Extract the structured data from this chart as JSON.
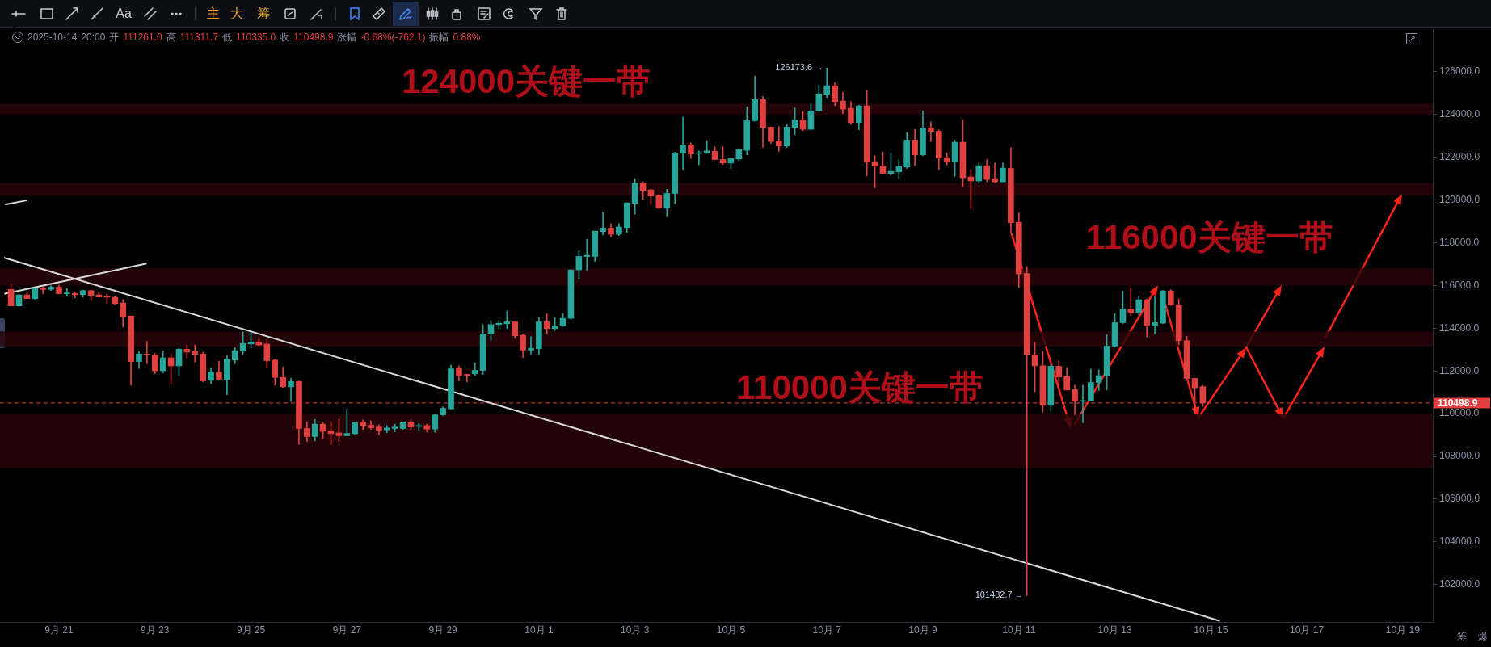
{
  "chart_data": {
    "type": "candlestick",
    "x": [
      "2025-09-20T00:00",
      "2025-09-20T04:00",
      "2025-09-20T08:00",
      "2025-09-20T12:00",
      "2025-09-20T16:00",
      "2025-09-20T20:00",
      "2025-09-21T00:00",
      "2025-09-21T04:00",
      "2025-09-21T08:00",
      "2025-09-21T12:00",
      "2025-09-21T16:00",
      "2025-09-21T20:00",
      "2025-09-22T00:00",
      "2025-09-22T04:00",
      "2025-09-22T08:00",
      "2025-09-22T12:00",
      "2025-09-22T16:00",
      "2025-09-22T20:00",
      "2025-09-23T00:00",
      "2025-09-23T04:00",
      "2025-09-23T08:00",
      "2025-09-23T12:00",
      "2025-09-23T16:00",
      "2025-09-23T20:00",
      "2025-09-24T00:00",
      "2025-09-24T04:00",
      "2025-09-24T08:00",
      "2025-09-24T12:00",
      "2025-09-24T16:00",
      "2025-09-24T20:00",
      "2025-09-25T00:00",
      "2025-09-25T04:00",
      "2025-09-25T08:00",
      "2025-09-25T12:00",
      "2025-09-25T16:00",
      "2025-09-25T20:00",
      "2025-09-26T00:00",
      "2025-09-26T04:00",
      "2025-09-26T08:00",
      "2025-09-26T12:00",
      "2025-09-26T16:00",
      "2025-09-26T20:00",
      "2025-09-27T00:00",
      "2025-09-27T04:00",
      "2025-09-27T08:00",
      "2025-09-27T12:00",
      "2025-09-27T16:00",
      "2025-09-27T20:00",
      "2025-09-28T00:00",
      "2025-09-28T04:00",
      "2025-09-28T08:00",
      "2025-09-28T12:00",
      "2025-09-28T16:00",
      "2025-09-28T20:00",
      "2025-09-29T00:00",
      "2025-09-29T04:00",
      "2025-09-29T08:00",
      "2025-09-29T12:00",
      "2025-09-29T16:00",
      "2025-09-29T20:00",
      "2025-09-30T00:00",
      "2025-09-30T04:00",
      "2025-09-30T08:00",
      "2025-09-30T12:00",
      "2025-09-30T16:00",
      "2025-09-30T20:00",
      "2025-10-01T00:00",
      "2025-10-01T04:00",
      "2025-10-01T08:00",
      "2025-10-01T12:00",
      "2025-10-01T16:00",
      "2025-10-01T20:00",
      "2025-10-02T00:00",
      "2025-10-02T04:00",
      "2025-10-02T08:00",
      "2025-10-02T12:00",
      "2025-10-02T16:00",
      "2025-10-02T20:00",
      "2025-10-03T00:00",
      "2025-10-03T04:00",
      "2025-10-03T08:00",
      "2025-10-03T12:00",
      "2025-10-03T16:00",
      "2025-10-03T20:00",
      "2025-10-04T00:00",
      "2025-10-04T04:00",
      "2025-10-04T08:00",
      "2025-10-04T12:00",
      "2025-10-04T16:00",
      "2025-10-04T20:00",
      "2025-10-05T00:00",
      "2025-10-05T04:00",
      "2025-10-05T08:00",
      "2025-10-05T12:00",
      "2025-10-05T16:00",
      "2025-10-05T20:00",
      "2025-10-06T00:00",
      "2025-10-06T04:00",
      "2025-10-06T08:00",
      "2025-10-06T12:00",
      "2025-10-06T16:00",
      "2025-10-06T20:00",
      "2025-10-07T00:00",
      "2025-10-07T04:00",
      "2025-10-07T08:00",
      "2025-10-07T12:00",
      "2025-10-07T16:00",
      "2025-10-07T20:00",
      "2025-10-08T00:00",
      "2025-10-08T04:00",
      "2025-10-08T08:00",
      "2025-10-08T12:00",
      "2025-10-08T16:00",
      "2025-10-08T20:00",
      "2025-10-09T00:00",
      "2025-10-09T04:00",
      "2025-10-09T08:00",
      "2025-10-09T12:00",
      "2025-10-09T16:00",
      "2025-10-09T20:00",
      "2025-10-10T00:00",
      "2025-10-10T04:00",
      "2025-10-10T08:00",
      "2025-10-10T12:00",
      "2025-10-10T16:00",
      "2025-10-10T20:00",
      "2025-10-11T00:00",
      "2025-10-11T04:00",
      "2025-10-11T08:00",
      "2025-10-11T12:00",
      "2025-10-11T16:00",
      "2025-10-11T20:00",
      "2025-10-12T00:00",
      "2025-10-12T04:00",
      "2025-10-12T08:00",
      "2025-10-12T12:00",
      "2025-10-12T16:00",
      "2025-10-12T20:00",
      "2025-10-13T00:00",
      "2025-10-13T04:00",
      "2025-10-13T08:00",
      "2025-10-13T12:00",
      "2025-10-13T16:00",
      "2025-10-13T20:00",
      "2025-10-14T00:00",
      "2025-10-14T04:00",
      "2025-10-14T08:00",
      "2025-10-14T12:00",
      "2025-10-14T16:00",
      "2025-10-14T20:00"
    ],
    "ohlc": [
      [
        115814,
        116057,
        115044,
        115044
      ],
      [
        115044,
        115584,
        115017,
        115557
      ],
      [
        115557,
        115652,
        115382,
        115382
      ],
      [
        115382,
        115881,
        115355,
        115854
      ],
      [
        115895,
        115922,
        115611,
        115814
      ],
      [
        115814,
        115989,
        115760,
        115922
      ],
      [
        115922,
        116016,
        115611,
        115611
      ],
      [
        115611,
        115854,
        115517,
        115652
      ],
      [
        115625,
        115692,
        115422,
        115571
      ],
      [
        115571,
        115787,
        115449,
        115760
      ],
      [
        115760,
        115787,
        115287,
        115530
      ],
      [
        115557,
        115692,
        115449,
        115463
      ],
      [
        115490,
        115611,
        115152,
        115449
      ],
      [
        115449,
        115503,
        115112,
        115152
      ],
      [
        115179,
        115341,
        114058,
        114544
      ],
      [
        114571,
        114571,
        111330,
        112438
      ],
      [
        112438,
        112924,
        112114,
        112789
      ],
      [
        112789,
        113383,
        112343,
        112748
      ],
      [
        112748,
        112816,
        111871,
        112006
      ],
      [
        112006,
        112938,
        111911,
        112613
      ],
      [
        112613,
        112775,
        111371,
        112235
      ],
      [
        112235,
        113046,
        111803,
        113019
      ],
      [
        113019,
        113208,
        112613,
        112883
      ],
      [
        112911,
        113221,
        112411,
        112775
      ],
      [
        112789,
        112883,
        111493,
        111533
      ],
      [
        111560,
        112141,
        111398,
        111938
      ],
      [
        111938,
        112451,
        111601,
        111601
      ],
      [
        111601,
        112708,
        110885,
        112546
      ],
      [
        112506,
        113086,
        112343,
        112951
      ],
      [
        112924,
        113829,
        112748,
        113289
      ],
      [
        113262,
        113802,
        113073,
        113356
      ],
      [
        113356,
        113559,
        113154,
        113208
      ],
      [
        113262,
        113464,
        112141,
        112478
      ],
      [
        112506,
        112546,
        111330,
        111695
      ],
      [
        111695,
        112181,
        111223,
        111263
      ],
      [
        111263,
        111668,
        110561,
        111506
      ],
      [
        111506,
        111533,
        108562,
        109305
      ],
      [
        109305,
        109615,
        108697,
        108927
      ],
      [
        108927,
        109737,
        108724,
        109507
      ],
      [
        109507,
        109575,
        108805,
        109170
      ],
      [
        109197,
        109643,
        108562,
        109062
      ],
      [
        109102,
        109737,
        108697,
        108967
      ],
      [
        108967,
        110223,
        108967,
        109075
      ],
      [
        109062,
        109615,
        109035,
        109575
      ],
      [
        109615,
        109710,
        109264,
        109440
      ],
      [
        109467,
        109670,
        109264,
        109332
      ],
      [
        109373,
        109481,
        109008,
        109211
      ],
      [
        109238,
        109440,
        109102,
        109332
      ],
      [
        109305,
        109508,
        109143,
        109373
      ],
      [
        109305,
        109615,
        109264,
        109575
      ],
      [
        109575,
        109710,
        109264,
        109373
      ],
      [
        109400,
        109535,
        109197,
        109440
      ],
      [
        109440,
        109508,
        109143,
        109278
      ],
      [
        109278,
        109967,
        109130,
        109940
      ],
      [
        109940,
        110318,
        109913,
        110250
      ],
      [
        110223,
        112276,
        110223,
        112100
      ],
      [
        112117,
        112242,
        111525,
        111773
      ],
      [
        111840,
        111840,
        111487,
        111790
      ],
      [
        111866,
        112369,
        111777,
        112028
      ],
      [
        112028,
        114171,
        111840,
        113730
      ],
      [
        113730,
        114360,
        113415,
        114171
      ],
      [
        114171,
        114360,
        113957,
        114234
      ],
      [
        114209,
        114801,
        113983,
        114297
      ],
      [
        114297,
        114297,
        113541,
        113642
      ],
      [
        113667,
        113730,
        112621,
        112974
      ],
      [
        112974,
        113604,
        112785,
        113062
      ],
      [
        113037,
        114486,
        112747,
        114297
      ],
      [
        114297,
        114675,
        113730,
        113982
      ],
      [
        113982,
        114486,
        113894,
        114108
      ],
      [
        114108,
        114675,
        114083,
        114461
      ],
      [
        114461,
        116730,
        114423,
        116730
      ],
      [
        116730,
        117612,
        116314,
        117360
      ],
      [
        117360,
        118166,
        116692,
        117410
      ],
      [
        117360,
        118544,
        117133,
        118544
      ],
      [
        118519,
        119427,
        118368,
        118683
      ],
      [
        118683,
        118897,
        118267,
        118393
      ],
      [
        118393,
        118897,
        118330,
        118733
      ],
      [
        118708,
        119868,
        118481,
        119868
      ],
      [
        119843,
        121002,
        119338,
        120788
      ],
      [
        120788,
        120851,
        120032,
        120448
      ],
      [
        120473,
        120511,
        119780,
        120183
      ],
      [
        120221,
        120246,
        119591,
        119616
      ],
      [
        119616,
        120498,
        119213,
        120309
      ],
      [
        120309,
        122237,
        119818,
        122199
      ],
      [
        122199,
        123876,
        121418,
        122578
      ],
      [
        122578,
        122678,
        121947,
        122149
      ],
      [
        122174,
        122300,
        121645,
        122212
      ],
      [
        122199,
        122766,
        122174,
        122300
      ],
      [
        122275,
        122489,
        121884,
        121897
      ],
      [
        121897,
        122489,
        121670,
        121733
      ],
      [
        121733,
        121935,
        121481,
        121935
      ],
      [
        121922,
        122401,
        121834,
        122363
      ],
      [
        122325,
        124354,
        122111,
        123712
      ],
      [
        123712,
        125791,
        123686,
        124695
      ],
      [
        124695,
        124846,
        122464,
        123396
      ],
      [
        123409,
        123409,
        122653,
        122741
      ],
      [
        122766,
        123434,
        122275,
        122527
      ],
      [
        122527,
        123535,
        122464,
        123409
      ],
      [
        123396,
        124317,
        123056,
        123749
      ],
      [
        123749,
        124127,
        123245,
        123308
      ],
      [
        123308,
        124505,
        123308,
        124165
      ],
      [
        124165,
        125388,
        124165,
        124972
      ],
      [
        124947,
        126173.6,
        124795,
        125350
      ],
      [
        125350,
        125489,
        124417,
        124606
      ],
      [
        124632,
        125048,
        124039,
        124253
      ],
      [
        124291,
        124606,
        123535,
        123623
      ],
      [
        123623,
        124443,
        123283,
        124405
      ],
      [
        124405,
        125110,
        121128,
        121771
      ],
      [
        121796,
        122073,
        120561,
        121582
      ],
      [
        121595,
        122237,
        121204,
        121229
      ],
      [
        121229,
        122199,
        121166,
        121342
      ],
      [
        121317,
        121884,
        121015,
        121569
      ],
      [
        121544,
        123157,
        121481,
        122804
      ],
      [
        122804,
        123308,
        121607,
        122111
      ],
      [
        122111,
        124165,
        122073,
        123372
      ],
      [
        123372,
        123661,
        122741,
        123208
      ],
      [
        123220,
        123283,
        121418,
        121960
      ],
      [
        121985,
        122199,
        121645,
        121796
      ],
      [
        121796,
        122804,
        121103,
        122703
      ],
      [
        122703,
        123749,
        120599,
        121040
      ],
      [
        121078,
        121418,
        119591,
        120889
      ],
      [
        120889,
        121733,
        120788,
        121607
      ],
      [
        121607,
        121884,
        120851,
        120964
      ],
      [
        121002,
        121733,
        120813,
        120851
      ],
      [
        120851,
        121733,
        120851,
        121494
      ],
      [
        121481,
        122451,
        118456,
        118935
      ],
      [
        118960,
        119401,
        115897,
        116540
      ],
      [
        116565,
        116881,
        101482.7,
        112747
      ],
      [
        112747,
        113314,
        111020,
        112243
      ],
      [
        112243,
        112911,
        110075,
        110390
      ],
      [
        110390,
        112281,
        110138,
        112218
      ],
      [
        112218,
        112469,
        111209,
        111713
      ],
      [
        111738,
        112154,
        111108,
        111108
      ],
      [
        111121,
        111335,
        109949,
        110579
      ],
      [
        110579,
        111335,
        109571,
        110617
      ],
      [
        110617,
        112092,
        110604,
        111461
      ],
      [
        111461,
        112054,
        111083,
        111776
      ],
      [
        111776,
        113705,
        111108,
        113163
      ],
      [
        113163,
        114675,
        113125,
        114259
      ],
      [
        114259,
        115746,
        114209,
        114902
      ],
      [
        114902,
        115897,
        114587,
        114738
      ],
      [
        114738,
        115519,
        114612,
        115331
      ],
      [
        115331,
        115368,
        113578,
        114108
      ],
      [
        114108,
        115494,
        113730,
        114259
      ],
      [
        114234,
        115771,
        114209,
        115746
      ],
      [
        115746,
        115809,
        115053,
        115091
      ],
      [
        115091,
        115368,
        113226,
        113415
      ],
      [
        113415,
        113604,
        111613,
        111650
      ],
      [
        111650,
        111650,
        110012,
        111209
      ],
      [
        111261.0,
        111311.7,
        110335.0,
        110498.9
      ]
    ],
    "colors": [
      "#e0403f",
      "#26a69a",
      "#e0403f",
      "#26a69a",
      "#e0403f",
      "#26a69a",
      "#e0403f",
      "#26a69a",
      "#e0403f",
      "#26a69a",
      "#e0403f",
      "#e0403f",
      "#e0403f",
      "#e0403f",
      "#e0403f",
      "#e0403f",
      "#26a69a",
      "#e0403f",
      "#e0403f",
      "#26a69a",
      "#e0403f",
      "#26a69a",
      "#e0403f",
      "#e0403f",
      "#e0403f",
      "#26a69a",
      "#e0403f",
      "#26a69a",
      "#26a69a",
      "#26a69a",
      "#26a69a",
      "#e0403f",
      "#e0403f",
      "#e0403f",
      "#e0403f",
      "#26a69a",
      "#e0403f",
      "#e0403f",
      "#26a69a",
      "#e0403f",
      "#e0403f",
      "#e0403f",
      "#26a69a",
      "#26a69a",
      "#e0403f",
      "#e0403f",
      "#e0403f",
      "#26a69a",
      "#26a69a",
      "#26a69a",
      "#e0403f",
      "#26a69a",
      "#e0403f",
      "#26a69a",
      "#26a69a",
      "#26a69a",
      "#e0403f",
      "#e0403f",
      "#26a69a",
      "#26a69a",
      "#26a69a",
      "#26a69a",
      "#26a69a",
      "#e0403f",
      "#e0403f",
      "#26a69a",
      "#26a69a",
      "#e0403f",
      "#26a69a",
      "#26a69a",
      "#26a69a",
      "#26a69a",
      "#26a69a",
      "#26a69a",
      "#26a69a",
      "#e0403f",
      "#26a69a",
      "#26a69a",
      "#26a69a",
      "#e0403f",
      "#e0403f",
      "#e0403f",
      "#26a69a",
      "#26a69a",
      "#26a69a",
      "#e0403f",
      "#26a69a",
      "#26a69a",
      "#e0403f",
      "#e0403f",
      "#26a69a",
      "#26a69a",
      "#26a69a",
      "#26a69a",
      "#e0403f",
      "#e0403f",
      "#e0403f",
      "#26a69a",
      "#26a69a",
      "#e0403f",
      "#26a69a",
      "#26a69a",
      "#26a69a",
      "#e0403f",
      "#e0403f",
      "#e0403f",
      "#26a69a",
      "#e0403f",
      "#e0403f",
      "#e0403f",
      "#26a69a",
      "#26a69a",
      "#26a69a",
      "#e0403f",
      "#26a69a",
      "#e0403f",
      "#e0403f",
      "#e0403f",
      "#26a69a",
      "#e0403f",
      "#e0403f",
      "#26a69a",
      "#e0403f",
      "#e0403f",
      "#26a69a",
      "#e0403f",
      "#e0403f",
      "#e0403f",
      "#e0403f",
      "#e0403f",
      "#26a69a",
      "#e0403f",
      "#e0403f",
      "#e0403f",
      "#26a69a",
      "#26a69a",
      "#26a69a",
      "#26a69a",
      "#26a69a",
      "#26a69a",
      "#e0403f",
      "#26a69a",
      "#e0403f",
      "#26a69a",
      "#26a69a",
      "#e0403f",
      "#e0403f",
      "#e0403f",
      "#e0403f",
      "#e0403f"
    ],
    "series": [
      {
        "type": "line",
        "color": "#d9d9d9",
        "x": [
          "2025-09-19T20:30",
          "2025-10-15T04:30"
        ],
        "values": [
          117300,
          100300
        ]
      },
      {
        "type": "line",
        "color": "#d9d9d9",
        "x": [
          "2025-09-19T20:40",
          "2025-09-22T19:50"
        ],
        "values": [
          115610,
          117030
        ]
      },
      {
        "type": "line",
        "color": "#d9d9d9",
        "x": [
          "2025-09-19T21:00",
          "2025-09-20T07:50"
        ],
        "values": [
          119790,
          119980
        ]
      }
    ],
    "xlim": [
      "2025-09-19T18:30",
      "2025-10-19T15:00"
    ],
    "xticks": [
      {
        "value": "2025-09-21",
        "label": "9月 21"
      },
      {
        "value": "2025-09-23",
        "label": "9月 23"
      },
      {
        "value": "2025-09-25",
        "label": "9月 25"
      },
      {
        "value": "2025-09-27",
        "label": "9月 27"
      },
      {
        "value": "2025-09-29",
        "label": "9月 29"
      },
      {
        "value": "2025-10-01",
        "label": "10月 1"
      },
      {
        "value": "2025-10-03",
        "label": "10月 3"
      },
      {
        "value": "2025-10-05",
        "label": "10月 5"
      },
      {
        "value": "2025-10-07",
        "label": "10月 7"
      },
      {
        "value": "2025-10-09",
        "label": "10月 9"
      },
      {
        "value": "2025-10-11",
        "label": "10月 11"
      },
      {
        "value": "2025-10-13",
        "label": "10月 13"
      },
      {
        "value": "2025-10-15",
        "label": "10月 15"
      },
      {
        "value": "2025-10-17",
        "label": "10月 17"
      },
      {
        "value": "2025-10-19",
        "label": "10月 19"
      }
    ],
    "ylim": [
      100250,
      128000
    ],
    "yticks": [
      {
        "value": 102000,
        "label": "102000.0"
      },
      {
        "value": 104000,
        "label": "104000.0"
      },
      {
        "value": 106000,
        "label": "106000.0"
      },
      {
        "value": 108000,
        "label": "108000.0"
      },
      {
        "value": 110000,
        "label": "110000.0"
      },
      {
        "value": 112000,
        "label": "112000.0"
      },
      {
        "value": 114000,
        "label": "114000.0"
      },
      {
        "value": 116000,
        "label": "116000.0"
      },
      {
        "value": 118000,
        "label": "118000.0"
      },
      {
        "value": 120000,
        "label": "120000.0"
      },
      {
        "value": 122000,
        "label": "122000.0"
      },
      {
        "value": 124000,
        "label": "124000.0"
      },
      {
        "value": 126000,
        "label": "126000.0"
      }
    ],
    "bands": [
      {
        "axis": "y",
        "from": 124000,
        "to": 124500,
        "color": "#2a0409"
      },
      {
        "axis": "y",
        "from": 120200,
        "to": 120800,
        "color": "#2a0409"
      },
      {
        "axis": "y",
        "from": 116000,
        "to": 116800,
        "color": "#2a0409"
      },
      {
        "axis": "y",
        "from": 113150,
        "to": 113850,
        "color": "#2a0409"
      },
      {
        "axis": "y",
        "from": 107450,
        "to": 110000,
        "color": "#2a0409"
      }
    ],
    "ref_lines": [
      {
        "axis": "y",
        "value": 110498.9,
        "label": "110498.9",
        "color": "#e0403f",
        "line_style": "dashed"
      }
    ],
    "annotations": [
      "2025-10-14 20:00 开 111261.0 高 111311.7 低 110335.0 收 110498.9 涨幅 -0.68%(-762.1) 振幅 0.88%",
      "Aa",
      "主",
      "大",
      "筹",
      "筹",
      "爆",
      "124000关键一带",
      "110000关键一带",
      {
        "text": "116000关键一带",
        "x": "2025-10-16T11:20",
        "y": 116000
      },
      {
        "text": "126173.6 →",
        "x": "2025-10-07T00:00",
        "y": 126173.6
      },
      {
        "text": "101482.7 →",
        "x": "2025-10-11T04:00",
        "y": 101482.7
      }
    ]
  }
}
